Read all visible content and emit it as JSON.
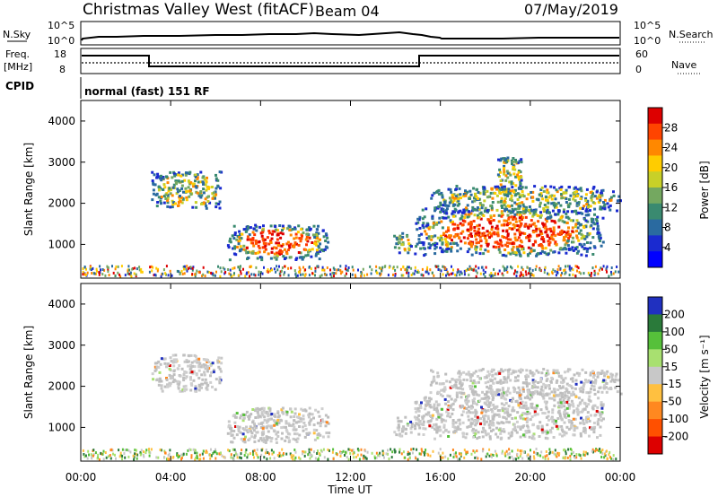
{
  "header": {
    "title": "Christmas Valley West (fitACF)",
    "beam": "Beam 04",
    "date": "07/May/2019"
  },
  "panels": {
    "nsky": {
      "label": "N.Sky",
      "tick_top": "10^5",
      "tick_bottom": "10^0"
    },
    "nsearch": {
      "label": "N.Search",
      "tick_top": "10^5",
      "tick_bottom": "10^0"
    },
    "freq": {
      "label": "Freq.",
      "unit": "[MHz]",
      "ticks": [
        "18",
        "8"
      ]
    },
    "nave": {
      "label": "Nave",
      "ticks": [
        "60",
        "0"
      ]
    },
    "cpid": {
      "label": "CPID",
      "text": "normal (fast) 151 RF"
    }
  },
  "chart_data": [
    {
      "type": "heatmap",
      "name": "power",
      "ylabel": "Slant Range [km]",
      "ylim": [
        180,
        4500
      ],
      "yticks": [
        "1000",
        "2000",
        "3000",
        "4000"
      ],
      "yvalues": [
        1000,
        2000,
        3000,
        4000
      ],
      "colorbar": {
        "label": "Power [dB]",
        "ticks": [
          "28",
          "24",
          "20",
          "16",
          "12",
          "8",
          "4"
        ],
        "colors": [
          "#dd0000",
          "#ff4400",
          "#ff8800",
          "#ffcc00",
          "#c8d028",
          "#74a860",
          "#3a8a70",
          "#2a6aa0",
          "#1a2ad0",
          "#0000ff"
        ]
      },
      "features": [
        {
          "t0": 3.1,
          "t1": 6.2,
          "r0": 1900,
          "r1": 2800,
          "level": "medium"
        },
        {
          "t0": 6.5,
          "t1": 11.0,
          "r0": 650,
          "r1": 1500,
          "level": "strong"
        },
        {
          "t0": 13.9,
          "t1": 14.7,
          "r0": 800,
          "r1": 1300,
          "level": "medium"
        },
        {
          "t0": 14.8,
          "t1": 23.2,
          "r0": 750,
          "r1": 1900,
          "level": "strong"
        },
        {
          "t0": 15.5,
          "t1": 24.0,
          "r0": 1800,
          "r1": 2450,
          "level": "medium"
        },
        {
          "t0": 18.5,
          "t1": 19.6,
          "r0": 2200,
          "r1": 3200,
          "level": "medium"
        }
      ]
    },
    {
      "type": "heatmap",
      "name": "velocity",
      "ylabel": "Slant Range [km]",
      "ylim": [
        180,
        4500
      ],
      "yticks": [
        "1000",
        "2000",
        "3000",
        "4000"
      ],
      "yvalues": [
        1000,
        2000,
        3000,
        4000
      ],
      "colorbar": {
        "label": "Velocity [m s⁻¹]",
        "ticks": [
          "200",
          "100",
          "50",
          "15",
          "-15",
          "-50",
          "-100",
          "-200"
        ],
        "colors": [
          "#2030c0",
          "#2a7a3a",
          "#56c03a",
          "#a8e070",
          "#c8c8c8",
          "#ffc040",
          "#ff8820",
          "#ff5000",
          "#dd0000"
        ]
      },
      "features": [
        {
          "t0": 3.1,
          "t1": 6.2,
          "r0": 1900,
          "r1": 2800,
          "level": "gray"
        },
        {
          "t0": 6.5,
          "t1": 11.0,
          "r0": 650,
          "r1": 1500,
          "level": "gray"
        },
        {
          "t0": 13.9,
          "t1": 14.7,
          "r0": 800,
          "r1": 1300,
          "level": "gray"
        },
        {
          "t0": 14.8,
          "t1": 23.2,
          "r0": 750,
          "r1": 1900,
          "level": "gray"
        },
        {
          "t0": 15.5,
          "t1": 24.0,
          "r0": 1800,
          "r1": 2450,
          "level": "gray"
        }
      ]
    }
  ],
  "xaxis": {
    "label": "Time UT",
    "ticks": [
      "00:00",
      "04:00",
      "08:00",
      "12:00",
      "16:00",
      "20:00",
      "00:00"
    ],
    "values": [
      0,
      4,
      8,
      12,
      16,
      20,
      24
    ]
  }
}
